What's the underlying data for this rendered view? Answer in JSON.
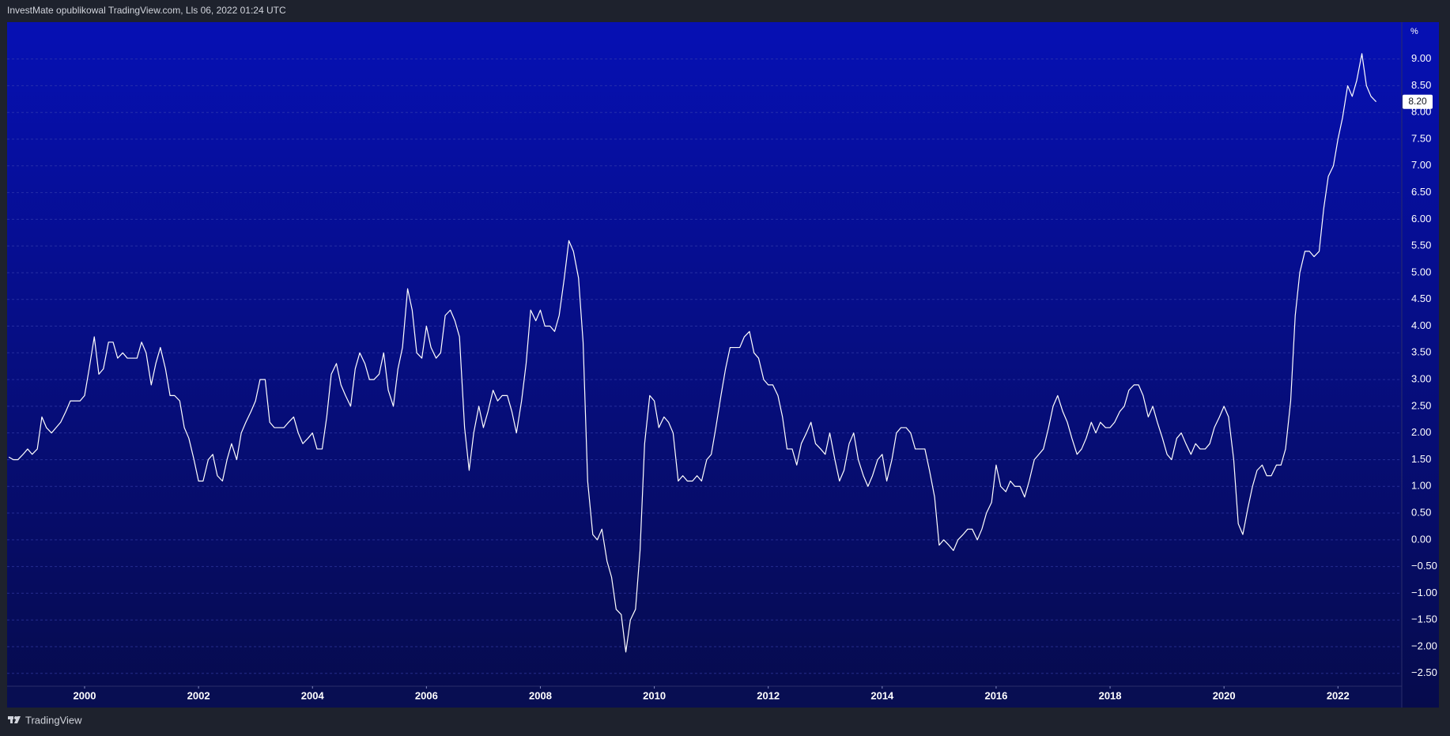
{
  "header": "InvestMate opublikowal TradingView.com, Lls 06, 2022 01:24 UTC",
  "footer": "TradingView",
  "chart_data": {
    "type": "line",
    "y_unit": "%",
    "xlim": [
      1998.64,
      2023.12
    ],
    "xticks": [
      2000,
      2002,
      2004,
      2006,
      2008,
      2010,
      2012,
      2014,
      2016,
      2018,
      2020,
      2022
    ],
    "ylim": [
      -2.74,
      9.69
    ],
    "yticks": [
      {
        "value": -2.5,
        "label": "−2.50"
      },
      {
        "value": -2,
        "label": "−2.00"
      },
      {
        "value": -1.5,
        "label": "−1.50"
      },
      {
        "value": -1,
        "label": "−1.00"
      },
      {
        "value": -0.5,
        "label": "−0.50"
      },
      {
        "value": 0,
        "label": "0.00"
      },
      {
        "value": 0.5,
        "label": "0.50"
      },
      {
        "value": 1,
        "label": "1.00"
      },
      {
        "value": 1.5,
        "label": "1.50"
      },
      {
        "value": 2,
        "label": "2.00"
      },
      {
        "value": 2.5,
        "label": "2.50"
      },
      {
        "value": 3,
        "label": "3.00"
      },
      {
        "value": 3.5,
        "label": "3.50"
      },
      {
        "value": 4,
        "label": "4.00"
      },
      {
        "value": 4.5,
        "label": "4.50"
      },
      {
        "value": 5,
        "label": "5.00"
      },
      {
        "value": 5.5,
        "label": "5.50"
      },
      {
        "value": 6,
        "label": "6.00"
      },
      {
        "value": 6.5,
        "label": "6.50"
      },
      {
        "value": 7,
        "label": "7.00"
      },
      {
        "value": 7.5,
        "label": "7.50"
      },
      {
        "value": 8,
        "label": "8.00"
      },
      {
        "value": 8.5,
        "label": "8.50"
      },
      {
        "value": 9,
        "label": "9.00"
      }
    ],
    "grid": true,
    "color": "#ffffff",
    "last_label": "8.20",
    "x": [
      1998.67,
      1998.75,
      1998.83,
      1998.92,
      1999.0,
      1999.08,
      1999.17,
      1999.25,
      1999.33,
      1999.42,
      1999.5,
      1999.58,
      1999.67,
      1999.75,
      1999.83,
      1999.92,
      2000.0,
      2000.08,
      2000.17,
      2000.25,
      2000.33,
      2000.42,
      2000.5,
      2000.58,
      2000.67,
      2000.75,
      2000.83,
      2000.92,
      2001.0,
      2001.08,
      2001.17,
      2001.25,
      2001.33,
      2001.42,
      2001.5,
      2001.58,
      2001.67,
      2001.75,
      2001.83,
      2001.92,
      2002.0,
      2002.08,
      2002.17,
      2002.25,
      2002.33,
      2002.42,
      2002.5,
      2002.58,
      2002.67,
      2002.75,
      2002.83,
      2002.92,
      2003.0,
      2003.08,
      2003.17,
      2003.25,
      2003.33,
      2003.42,
      2003.5,
      2003.58,
      2003.67,
      2003.75,
      2003.83,
      2003.92,
      2004.0,
      2004.08,
      2004.17,
      2004.25,
      2004.33,
      2004.42,
      2004.5,
      2004.58,
      2004.67,
      2004.75,
      2004.83,
      2004.92,
      2005.0,
      2005.08,
      2005.17,
      2005.25,
      2005.33,
      2005.42,
      2005.5,
      2005.58,
      2005.67,
      2005.75,
      2005.83,
      2005.92,
      2006.0,
      2006.08,
      2006.17,
      2006.25,
      2006.33,
      2006.42,
      2006.5,
      2006.58,
      2006.67,
      2006.75,
      2006.83,
      2006.92,
      2007.0,
      2007.08,
      2007.17,
      2007.25,
      2007.33,
      2007.42,
      2007.5,
      2007.58,
      2007.67,
      2007.75,
      2007.83,
      2007.92,
      2008.0,
      2008.08,
      2008.17,
      2008.25,
      2008.33,
      2008.42,
      2008.5,
      2008.58,
      2008.67,
      2008.75,
      2008.83,
      2008.92,
      2009.0,
      2009.08,
      2009.17,
      2009.25,
      2009.33,
      2009.42,
      2009.5,
      2009.58,
      2009.67,
      2009.75,
      2009.83,
      2009.92,
      2010.0,
      2010.08,
      2010.17,
      2010.25,
      2010.33,
      2010.42,
      2010.5,
      2010.58,
      2010.67,
      2010.75,
      2010.83,
      2010.92,
      2011.0,
      2011.08,
      2011.17,
      2011.25,
      2011.33,
      2011.42,
      2011.5,
      2011.58,
      2011.67,
      2011.75,
      2011.83,
      2011.92,
      2012.0,
      2012.08,
      2012.17,
      2012.25,
      2012.33,
      2012.42,
      2012.5,
      2012.58,
      2012.67,
      2012.75,
      2012.83,
      2012.92,
      2013.0,
      2013.08,
      2013.17,
      2013.25,
      2013.33,
      2013.42,
      2013.5,
      2013.58,
      2013.67,
      2013.75,
      2013.83,
      2013.92,
      2014.0,
      2014.08,
      2014.17,
      2014.25,
      2014.33,
      2014.42,
      2014.5,
      2014.58,
      2014.67,
      2014.75,
      2014.83,
      2014.92,
      2015.0,
      2015.08,
      2015.17,
      2015.25,
      2015.33,
      2015.42,
      2015.5,
      2015.58,
      2015.67,
      2015.75,
      2015.83,
      2015.92,
      2016.0,
      2016.08,
      2016.17,
      2016.25,
      2016.33,
      2016.42,
      2016.5,
      2016.58,
      2016.67,
      2016.75,
      2016.83,
      2016.92,
      2017.0,
      2017.08,
      2017.17,
      2017.25,
      2017.33,
      2017.42,
      2017.5,
      2017.58,
      2017.67,
      2017.75,
      2017.83,
      2017.92,
      2018.0,
      2018.08,
      2018.17,
      2018.25,
      2018.33,
      2018.42,
      2018.5,
      2018.58,
      2018.67,
      2018.75,
      2018.83,
      2018.92,
      2019.0,
      2019.08,
      2019.17,
      2019.25,
      2019.33,
      2019.42,
      2019.5,
      2019.58,
      2019.67,
      2019.75,
      2019.83,
      2019.92,
      2020.0,
      2020.08,
      2020.17,
      2020.25,
      2020.33,
      2020.42,
      2020.5,
      2020.58,
      2020.67,
      2020.75,
      2020.83,
      2020.92,
      2021.0,
      2021.08,
      2021.17,
      2021.25,
      2021.33,
      2021.42,
      2021.5,
      2021.58,
      2021.67,
      2021.75,
      2021.83,
      2021.92,
      2022.0,
      2022.08,
      2022.17,
      2022.25,
      2022.33,
      2022.42,
      2022.5,
      2022.58,
      2022.67
    ],
    "values": [
      1.55,
      1.5,
      1.5,
      1.6,
      1.7,
      1.6,
      1.7,
      2.3,
      2.1,
      2.0,
      2.1,
      2.2,
      2.4,
      2.6,
      2.6,
      2.6,
      2.7,
      3.2,
      3.8,
      3.1,
      3.2,
      3.7,
      3.7,
      3.4,
      3.5,
      3.4,
      3.4,
      3.4,
      3.7,
      3.5,
      2.9,
      3.3,
      3.6,
      3.2,
      2.7,
      2.7,
      2.6,
      2.1,
      1.9,
      1.5,
      1.1,
      1.1,
      1.5,
      1.6,
      1.2,
      1.1,
      1.5,
      1.8,
      1.5,
      2.0,
      2.2,
      2.4,
      2.6,
      3.0,
      3.0,
      2.2,
      2.1,
      2.1,
      2.1,
      2.2,
      2.3,
      2.0,
      1.8,
      1.9,
      2.0,
      1.7,
      1.7,
      2.3,
      3.1,
      3.3,
      2.9,
      2.7,
      2.5,
      3.2,
      3.5,
      3.3,
      3.0,
      3.0,
      3.1,
      3.5,
      2.8,
      2.5,
      3.2,
      3.6,
      4.7,
      4.3,
      3.5,
      3.4,
      4.0,
      3.6,
      3.4,
      3.5,
      4.2,
      4.3,
      4.1,
      3.8,
      2.1,
      1.3,
      2.0,
      2.5,
      2.1,
      2.4,
      2.8,
      2.6,
      2.7,
      2.7,
      2.4,
      2.0,
      2.6,
      3.3,
      4.3,
      4.1,
      4.3,
      4.0,
      4.0,
      3.9,
      4.2,
      4.9,
      5.6,
      5.4,
      4.9,
      3.7,
      1.1,
      0.1,
      0.0,
      0.2,
      -0.4,
      -0.7,
      -1.3,
      -1.4,
      -2.1,
      -1.5,
      -1.3,
      -0.2,
      1.8,
      2.7,
      2.6,
      2.1,
      2.3,
      2.2,
      2.0,
      1.1,
      1.2,
      1.1,
      1.1,
      1.2,
      1.1,
      1.5,
      1.6,
      2.1,
      2.7,
      3.2,
      3.6,
      3.6,
      3.6,
      3.8,
      3.9,
      3.5,
      3.4,
      3.0,
      2.9,
      2.9,
      2.7,
      2.3,
      1.7,
      1.7,
      1.4,
      1.8,
      2.0,
      2.2,
      1.8,
      1.7,
      1.6,
      2.0,
      1.5,
      1.1,
      1.3,
      1.8,
      2.0,
      1.5,
      1.2,
      1.0,
      1.2,
      1.5,
      1.6,
      1.1,
      1.5,
      2.0,
      2.1,
      2.1,
      2.0,
      1.7,
      1.7,
      1.7,
      1.3,
      0.8,
      -0.1,
      0.0,
      -0.1,
      -0.2,
      0.0,
      0.1,
      0.2,
      0.2,
      0.0,
      0.2,
      0.5,
      0.7,
      1.4,
      1.0,
      0.9,
      1.1,
      1.0,
      1.0,
      0.8,
      1.1,
      1.5,
      1.6,
      1.7,
      2.1,
      2.5,
      2.7,
      2.4,
      2.2,
      1.9,
      1.6,
      1.7,
      1.9,
      2.2,
      2.0,
      2.2,
      2.1,
      2.1,
      2.2,
      2.4,
      2.5,
      2.8,
      2.9,
      2.9,
      2.7,
      2.3,
      2.5,
      2.2,
      1.9,
      1.6,
      1.5,
      1.9,
      2.0,
      1.8,
      1.6,
      1.8,
      1.7,
      1.7,
      1.8,
      2.1,
      2.3,
      2.5,
      2.3,
      1.5,
      0.3,
      0.1,
      0.6,
      1.0,
      1.3,
      1.4,
      1.2,
      1.2,
      1.4,
      1.4,
      1.7,
      2.6,
      4.2,
      5.0,
      5.4,
      5.4,
      5.3,
      5.4,
      6.2,
      6.8,
      7.0,
      7.5,
      7.9,
      8.5,
      8.3,
      8.6,
      9.1,
      8.5,
      8.3,
      8.2
    ]
  }
}
